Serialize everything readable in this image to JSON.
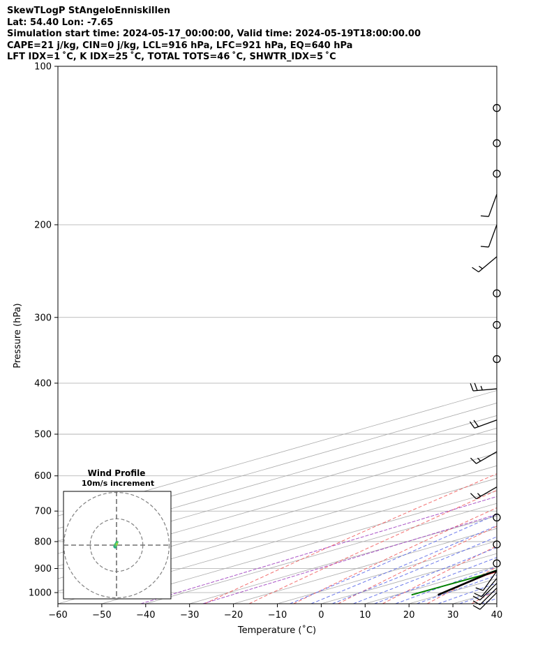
{
  "title_lines": [
    "SkewTLogP StAngeloEnniskillen",
    "Lat: 54.40   Lon: -7.65",
    "Simulation start time: 2024-05-17_00:00:00, Valid time: 2024-05-19T18:00:00.00",
    "CAPE=21 j/kg, CIN=0 j/kg, LCL=916 hPa, LFC=921 hPa, EQ=640 hPa",
    "LFT IDX=1 ˚C, K IDX=25 ˚C, TOTAL TOTS=46 ˚C, SHWTR_IDX=5 ˚C"
  ],
  "chart_data": {
    "type": "skewt",
    "xlabel": "Temperature (˚C)",
    "ylabel": "Pressure (hPa)",
    "xlim": [
      -60,
      40
    ],
    "ylim": [
      1050,
      100
    ],
    "x_ticks": [
      -60,
      -50,
      -40,
      -30,
      -20,
      -10,
      0,
      10,
      20,
      30,
      40
    ],
    "y_ticks": [
      1000,
      900,
      800,
      700,
      600,
      500,
      400,
      300,
      200,
      100
    ],
    "grid": true,
    "series": [
      {
        "role": "temperature",
        "color": "#e41a1c",
        "points": [
          [
            19.5,
            1010
          ],
          [
            14.5,
            925
          ],
          [
            14,
            900
          ],
          [
            12.5,
            850
          ],
          [
            11.5,
            800
          ],
          [
            10,
            750
          ],
          [
            9,
            700
          ],
          [
            8,
            650
          ],
          [
            7,
            600
          ],
          [
            6,
            550
          ],
          [
            5,
            500
          ],
          [
            3.5,
            450
          ],
          [
            1.5,
            400
          ],
          [
            -1,
            350
          ],
          [
            -4.5,
            300
          ],
          [
            -7.5,
            260
          ],
          [
            -8,
            235
          ],
          [
            -7.5,
            210
          ],
          [
            -5,
            190
          ],
          [
            -2,
            175
          ],
          [
            4,
            150
          ],
          [
            8.5,
            135
          ],
          [
            11,
            125
          ],
          [
            12,
            115
          ],
          [
            14,
            105
          ],
          [
            15,
            100
          ]
        ]
      },
      {
        "role": "dewpoint",
        "color": "#008000",
        "points": [
          [
            13.5,
            1010
          ],
          [
            14,
            925
          ],
          [
            13,
            900
          ],
          [
            9,
            850
          ],
          [
            7.5,
            800
          ],
          [
            7,
            750
          ],
          [
            6,
            700
          ],
          [
            4,
            650
          ],
          [
            1,
            600
          ],
          [
            -2,
            550
          ],
          [
            -5,
            500
          ],
          [
            -8.5,
            450
          ],
          [
            -12,
            400
          ],
          [
            -20,
            350
          ],
          [
            -25,
            330
          ],
          [
            -28,
            300
          ],
          [
            -32,
            270
          ],
          [
            -33,
            240
          ],
          [
            -33,
            220
          ],
          [
            -34,
            200
          ],
          [
            -36.5,
            180
          ],
          [
            -40,
            160
          ],
          [
            -42,
            145
          ],
          [
            -38,
            130
          ],
          [
            -36,
            120
          ],
          [
            -35,
            110
          ],
          [
            -34,
            100
          ]
        ]
      },
      {
        "role": "parcel",
        "color": "#000000",
        "points": [
          [
            19.5,
            1010
          ],
          [
            14,
            920
          ],
          [
            12,
            850
          ],
          [
            10,
            780
          ],
          [
            8,
            700
          ],
          [
            6,
            640
          ],
          [
            2,
            560
          ],
          [
            -4,
            480
          ],
          [
            -11,
            420
          ],
          [
            -18,
            370
          ],
          [
            -26,
            320
          ],
          [
            -34,
            280
          ],
          [
            -44,
            240
          ],
          [
            -52,
            210
          ],
          [
            -60,
            180
          ],
          [
            -67,
            160
          ],
          [
            -75,
            140
          ],
          [
            -82,
            125
          ],
          [
            -89,
            112
          ],
          [
            -95,
            100
          ]
        ]
      }
    ],
    "cape_fill_color": "#a3c6e0",
    "reference_lines": {
      "dry_adiabat_color": "#f05555",
      "moist_adiabat_color": "#5060e8",
      "mixing_ratio_color": "#a040c0",
      "isotherm_color": "#aaaaaa"
    },
    "wind_barbs": {
      "calm_levels_hPa": [
        120,
        140,
        160,
        270,
        310,
        360,
        720,
        810,
        880
      ],
      "barbs": [
        {
          "p": 175,
          "dir": 200,
          "kts": 10
        },
        {
          "p": 200,
          "dir": 200,
          "kts": 10
        },
        {
          "p": 230,
          "dir": 230,
          "kts": 15
        },
        {
          "p": 410,
          "dir": 265,
          "kts": 25
        },
        {
          "p": 470,
          "dir": 250,
          "kts": 20
        },
        {
          "p": 540,
          "dir": 240,
          "kts": 15
        },
        {
          "p": 630,
          "dir": 240,
          "kts": 15
        },
        {
          "p": 910,
          "dir": 215,
          "kts": 10
        },
        {
          "p": 940,
          "dir": 220,
          "kts": 10
        },
        {
          "p": 960,
          "dir": 225,
          "kts": 10
        },
        {
          "p": 980,
          "dir": 225,
          "kts": 10
        },
        {
          "p": 1000,
          "dir": 225,
          "kts": 10
        }
      ]
    },
    "hodograph": {
      "title": "Wind Profile",
      "subtitle": "10m/s increment",
      "ring_step": 10,
      "range": 20,
      "points": [
        [
          1,
          2
        ],
        [
          2,
          4
        ],
        [
          3,
          4
        ],
        [
          2,
          1
        ],
        [
          0,
          -1
        ],
        [
          -1,
          -2
        ],
        [
          0,
          -3
        ],
        [
          1,
          -1
        ],
        [
          0,
          1
        ]
      ],
      "colors": [
        "#2ab07f",
        "#22a884",
        "#52c569",
        "#bddf26",
        "#2a788e"
      ]
    }
  }
}
